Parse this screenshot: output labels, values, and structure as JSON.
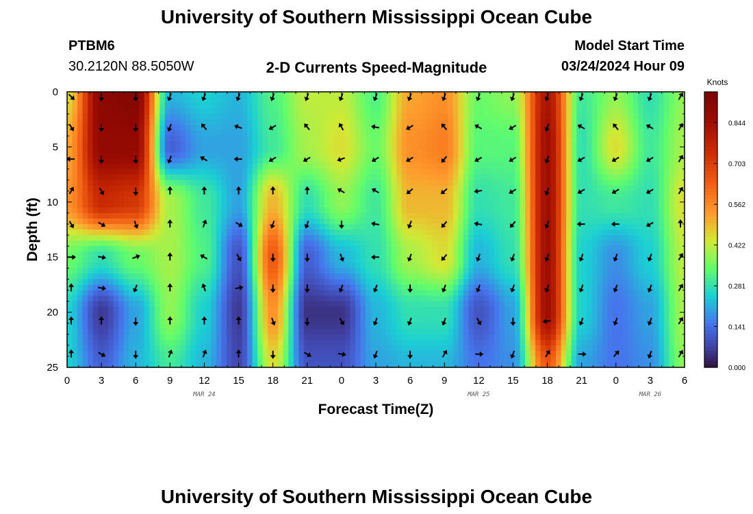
{
  "page": {
    "title": "University of Southern Mississippi Ocean Cube",
    "title_repeat": "University of Southern Mississippi Ocean Cube",
    "station": "PTBM6",
    "coords": "30.2120N  88.5050W",
    "product": "2-D Currents Speed-Magnitude",
    "model_label": "Model Start Time",
    "model_time": "03/24/2024 Hour 09"
  },
  "chart_data": {
    "type": "heatmap",
    "title": "2-D Currents Speed-Magnitude",
    "xlabel": "Forecast Time(Z)",
    "ylabel": "Depth (ft)",
    "colorbar_label": "Knots",
    "colorbar_ticks": [
      "0.844",
      "0.703",
      "0.562",
      "0.422",
      "0.281",
      "0.141",
      "0.000"
    ],
    "colorbar_values": [
      0.844,
      0.703,
      0.562,
      0.422,
      0.281,
      0.141,
      0.0
    ],
    "crange": [
      0,
      0.95
    ],
    "x_ticks": [
      "0",
      "3",
      "6",
      "9",
      "12",
      "15",
      "18",
      "21",
      "0",
      "3",
      "6",
      "9",
      "12",
      "15",
      "18",
      "21",
      "0",
      "3",
      "6"
    ],
    "x_hours": [
      0,
      3,
      6,
      9,
      12,
      15,
      18,
      21,
      24,
      27,
      30,
      33,
      36,
      39,
      42,
      45,
      48,
      51,
      54
    ],
    "xlim": [
      0,
      54
    ],
    "y_ticks": [
      "0",
      "5",
      "10",
      "15",
      "20",
      "25"
    ],
    "y_values": [
      0,
      5,
      10,
      15,
      20,
      25
    ],
    "ylim": [
      0,
      25
    ],
    "date_labels": [
      {
        "text": "MAR 24",
        "hour": 12
      },
      {
        "text": "MAR 25",
        "hour": 36
      },
      {
        "text": "MAR 26",
        "hour": 51
      }
    ],
    "speed_grid": {
      "hours": [
        0,
        3,
        6,
        9,
        12,
        15,
        18,
        21,
        24,
        27,
        30,
        33,
        36,
        39,
        42,
        45,
        48,
        51,
        54
      ],
      "depths": [
        0,
        5,
        10,
        15,
        20,
        25
      ],
      "values": [
        [
          0.45,
          0.9,
          0.92,
          0.22,
          0.25,
          0.22,
          0.32,
          0.42,
          0.42,
          0.32,
          0.52,
          0.55,
          0.35,
          0.38,
          0.82,
          0.3,
          0.38,
          0.28,
          0.38
        ],
        [
          0.52,
          0.88,
          0.88,
          0.12,
          0.2,
          0.2,
          0.3,
          0.4,
          0.45,
          0.35,
          0.55,
          0.58,
          0.33,
          0.33,
          0.85,
          0.28,
          0.45,
          0.3,
          0.4
        ],
        [
          0.55,
          0.75,
          0.72,
          0.4,
          0.3,
          0.2,
          0.5,
          0.28,
          0.38,
          0.3,
          0.5,
          0.5,
          0.28,
          0.3,
          0.85,
          0.28,
          0.3,
          0.28,
          0.45
        ],
        [
          0.35,
          0.28,
          0.35,
          0.4,
          0.32,
          0.1,
          0.65,
          0.12,
          0.22,
          0.28,
          0.4,
          0.45,
          0.22,
          0.28,
          0.85,
          0.25,
          0.18,
          0.25,
          0.42
        ],
        [
          0.25,
          0.06,
          0.2,
          0.38,
          0.25,
          0.06,
          0.55,
          0.05,
          0.05,
          0.22,
          0.28,
          0.28,
          0.1,
          0.2,
          0.85,
          0.25,
          0.15,
          0.2,
          0.4
        ],
        [
          0.25,
          0.12,
          0.22,
          0.3,
          0.22,
          0.08,
          0.45,
          0.1,
          0.1,
          0.2,
          0.22,
          0.22,
          0.15,
          0.18,
          0.65,
          0.2,
          0.15,
          0.18,
          0.38
        ]
      ]
    },
    "vectors": {
      "depths": [
        0.3,
        3.2,
        6.1,
        9.0,
        12.0,
        15.0,
        17.8,
        20.8,
        23.8
      ],
      "hours": [
        0,
        3,
        6,
        9,
        12,
        15,
        18,
        21,
        24,
        27,
        30,
        33,
        36,
        39,
        42,
        45,
        48,
        51,
        54
      ],
      "directions_deg": [
        [
          135,
          180,
          180,
          200,
          200,
          200,
          200,
          200,
          200,
          200,
          200,
          200,
          200,
          200,
          200,
          200,
          200,
          200,
          30
        ],
        [
          150,
          180,
          180,
          200,
          320,
          290,
          240,
          320,
          330,
          280,
          240,
          320,
          300,
          240,
          200,
          300,
          320,
          300,
          30
        ],
        [
          270,
          180,
          180,
          200,
          300,
          270,
          240,
          240,
          250,
          240,
          240,
          220,
          240,
          240,
          200,
          240,
          240,
          240,
          30
        ],
        [
          30,
          150,
          180,
          0,
          0,
          0,
          0,
          0,
          300,
          300,
          230,
          230,
          260,
          240,
          200,
          240,
          240,
          240,
          30
        ],
        [
          150,
          120,
          160,
          0,
          20,
          120,
          200,
          200,
          180,
          280,
          200,
          220,
          280,
          220,
          200,
          270,
          270,
          240,
          0
        ],
        [
          90,
          100,
          70,
          0,
          300,
          150,
          180,
          180,
          160,
          270,
          200,
          220,
          200,
          200,
          200,
          200,
          200,
          200,
          30
        ],
        [
          0,
          100,
          200,
          0,
          340,
          80,
          180,
          180,
          200,
          200,
          180,
          200,
          200,
          200,
          200,
          200,
          200,
          200,
          30
        ],
        [
          0,
          0,
          180,
          0,
          0,
          0,
          160,
          180,
          150,
          200,
          200,
          200,
          150,
          180,
          260,
          200,
          200,
          200,
          30
        ],
        [
          0,
          120,
          180,
          20,
          20,
          0,
          180,
          120,
          100,
          200,
          180,
          30,
          90,
          200,
          30,
          90,
          40,
          200,
          30
        ]
      ]
    }
  }
}
